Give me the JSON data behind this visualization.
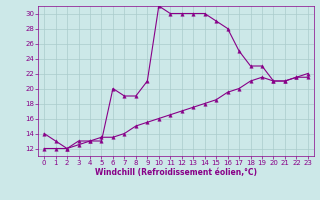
{
  "title": "",
  "xlabel": "Windchill (Refroidissement éolien,°C)",
  "bg_color": "#cce8e8",
  "line_color": "#880088",
  "xlim": [
    -0.5,
    23.5
  ],
  "ylim": [
    11.0,
    31.0
  ],
  "yticks": [
    12,
    14,
    16,
    18,
    20,
    22,
    24,
    26,
    28,
    30
  ],
  "xticks": [
    0,
    1,
    2,
    3,
    4,
    5,
    6,
    7,
    8,
    9,
    10,
    11,
    12,
    13,
    14,
    15,
    16,
    17,
    18,
    19,
    20,
    21,
    22,
    23
  ],
  "line1_x": [
    0,
    1,
    2,
    3,
    4,
    5,
    6,
    7,
    8,
    9,
    10,
    11,
    12,
    13,
    14,
    15,
    16,
    17,
    18,
    19,
    20,
    21,
    22,
    23
  ],
  "line1_y": [
    14,
    13,
    12,
    13,
    13,
    13,
    20,
    19,
    19,
    21,
    31,
    30,
    30,
    30,
    30,
    29,
    28,
    25,
    23,
    23,
    21,
    21,
    21.5,
    22
  ],
  "line2_x": [
    0,
    1,
    2,
    3,
    4,
    5,
    6,
    7,
    8,
    9,
    10,
    11,
    12,
    13,
    14,
    15,
    16,
    17,
    18,
    19,
    20,
    21,
    22,
    23
  ],
  "line2_y": [
    12,
    12,
    12,
    12.5,
    13,
    13.5,
    13.5,
    14,
    15,
    15.5,
    16,
    16.5,
    17,
    17.5,
    18,
    18.5,
    19.5,
    20,
    21,
    21.5,
    21,
    21,
    21.5,
    21.5
  ],
  "grid_color": "#aacccc",
  "marker": "^",
  "markersize": 2.5,
  "linewidth": 0.8,
  "tick_fontsize": 5,
  "xlabel_fontsize": 5.5
}
